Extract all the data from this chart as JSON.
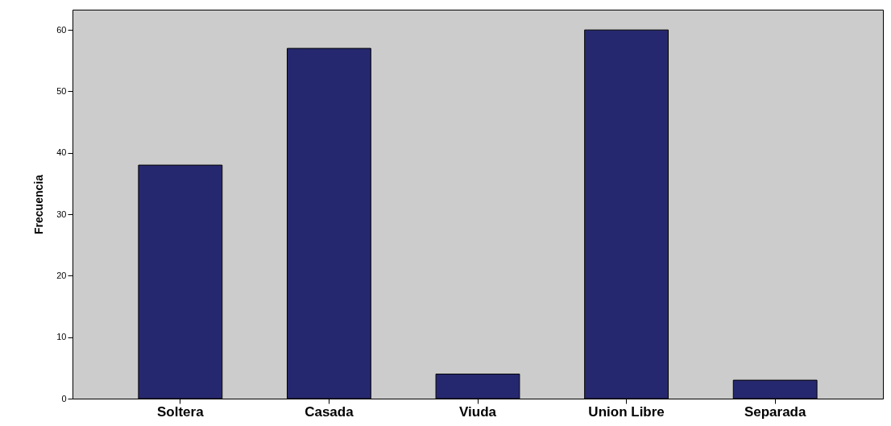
{
  "chart_data": {
    "type": "bar",
    "ylabel": "Frecuencia",
    "categories": [
      "Soltera",
      "Casada",
      "Viuda",
      "Union Libre",
      "Separada"
    ],
    "values": [
      38,
      57,
      4,
      60,
      3
    ],
    "color": "#26286f",
    "ylim": [
      0,
      63.3
    ],
    "yticks": [
      0,
      10,
      20,
      30,
      40,
      50,
      60
    ]
  }
}
